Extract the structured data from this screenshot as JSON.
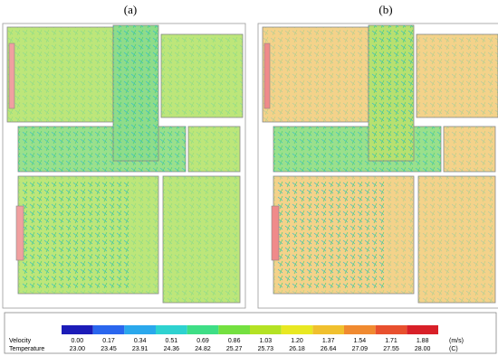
{
  "panels": [
    {
      "label": "(a)"
    },
    {
      "label": "(b)"
    }
  ],
  "legend": {
    "colors": [
      "#1c1cb8",
      "#2a66ee",
      "#2aa8ec",
      "#2ed2d0",
      "#3ede86",
      "#74e040",
      "#b4e224",
      "#e8e822",
      "#f0c02e",
      "#f08a30",
      "#e8502e",
      "#d82028"
    ],
    "rows": [
      {
        "name": "Velocity",
        "values": [
          "0.00",
          "0.17",
          "0.34",
          "0.51",
          "0.69",
          "0.86",
          "1.03",
          "1.20",
          "1.37",
          "1.54",
          "1.71",
          "1.88"
        ],
        "unit": "(m/s)"
      },
      {
        "name": "Temperature",
        "values": [
          "23.00",
          "23.45",
          "23.91",
          "24.36",
          "24.82",
          "25.27",
          "25.73",
          "26.18",
          "26.64",
          "27.09",
          "27.55",
          "28.00"
        ],
        "unit": "(C)"
      }
    ]
  }
}
